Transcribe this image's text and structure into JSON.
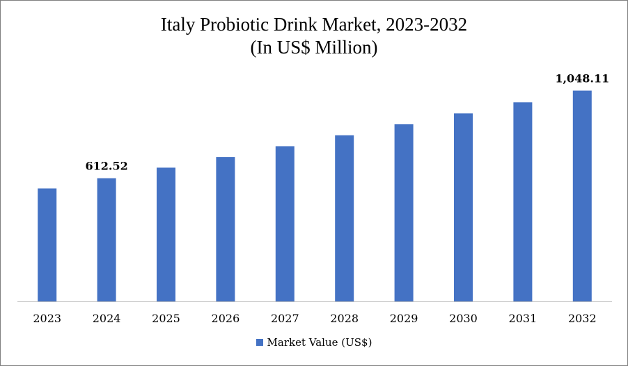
{
  "chart_data": {
    "type": "bar",
    "title_line1": "Italy Probiotic Drink Market, 2023-2032",
    "title_line2": "(In US$ Million)",
    "categories": [
      "2023",
      "2024",
      "2025",
      "2026",
      "2027",
      "2028",
      "2029",
      "2030",
      "2031",
      "2032"
    ],
    "series": [
      {
        "name": "Market Value (US$)",
        "color": "#4472c4",
        "values": [
          561.5,
          612.52,
          665.0,
          718.0,
          772.0,
          826.0,
          881.0,
          935.0,
          990.0,
          1048.11
        ]
      }
    ],
    "data_labels": [
      {
        "index": 1,
        "text": "612.52"
      },
      {
        "index": 9,
        "text": "1,048.11"
      }
    ],
    "ylim": [
      0,
      1150
    ],
    "xlabel": "",
    "ylabel": "",
    "grid": false,
    "legend_position": "bottom"
  }
}
